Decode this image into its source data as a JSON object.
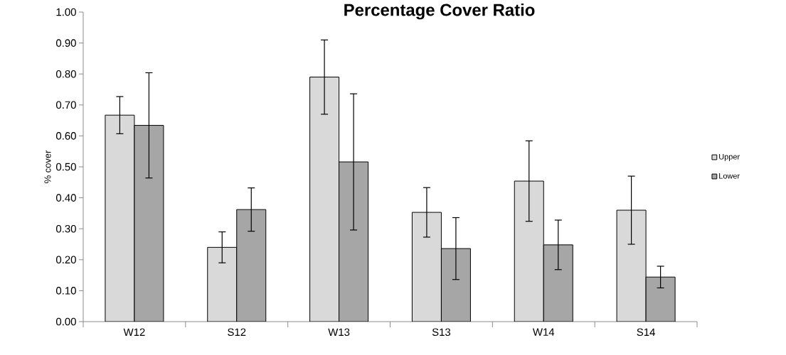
{
  "chart_data": {
    "type": "bar",
    "title": "Percentage Cover Ratio",
    "ylabel": "% cover",
    "categories": [
      "W12",
      "S12",
      "W13",
      "S13",
      "W14",
      "S14"
    ],
    "series": [
      {
        "name": "Upper",
        "color": "#d9d9d9",
        "values": [
          0.667,
          0.24,
          0.79,
          0.353,
          0.454,
          0.36
        ],
        "errors": [
          0.06,
          0.05,
          0.12,
          0.08,
          0.13,
          0.11
        ]
      },
      {
        "name": "Lower",
        "color": "#a6a6a6",
        "values": [
          0.634,
          0.362,
          0.516,
          0.236,
          0.248,
          0.144
        ],
        "errors": [
          0.17,
          0.07,
          0.22,
          0.1,
          0.08,
          0.035
        ]
      }
    ],
    "ylim": [
      0,
      1
    ],
    "yticks": [
      {
        "value": 0,
        "label": "0.00"
      },
      {
        "value": 0.1,
        "label": "0.10"
      },
      {
        "value": 0.2,
        "label": "0.20"
      },
      {
        "value": 0.3,
        "label": "0.30"
      },
      {
        "value": 0.4,
        "label": "0.40"
      },
      {
        "value": 0.5,
        "label": "0.50"
      },
      {
        "value": 0.6,
        "label": "0.60"
      },
      {
        "value": 0.7,
        "label": "0.70"
      },
      {
        "value": 0.8,
        "label": "0.80"
      },
      {
        "value": 0.9,
        "label": "0.90"
      },
      {
        "value": 1,
        "label": "1.00"
      }
    ],
    "grid": false,
    "legend": "right"
  }
}
